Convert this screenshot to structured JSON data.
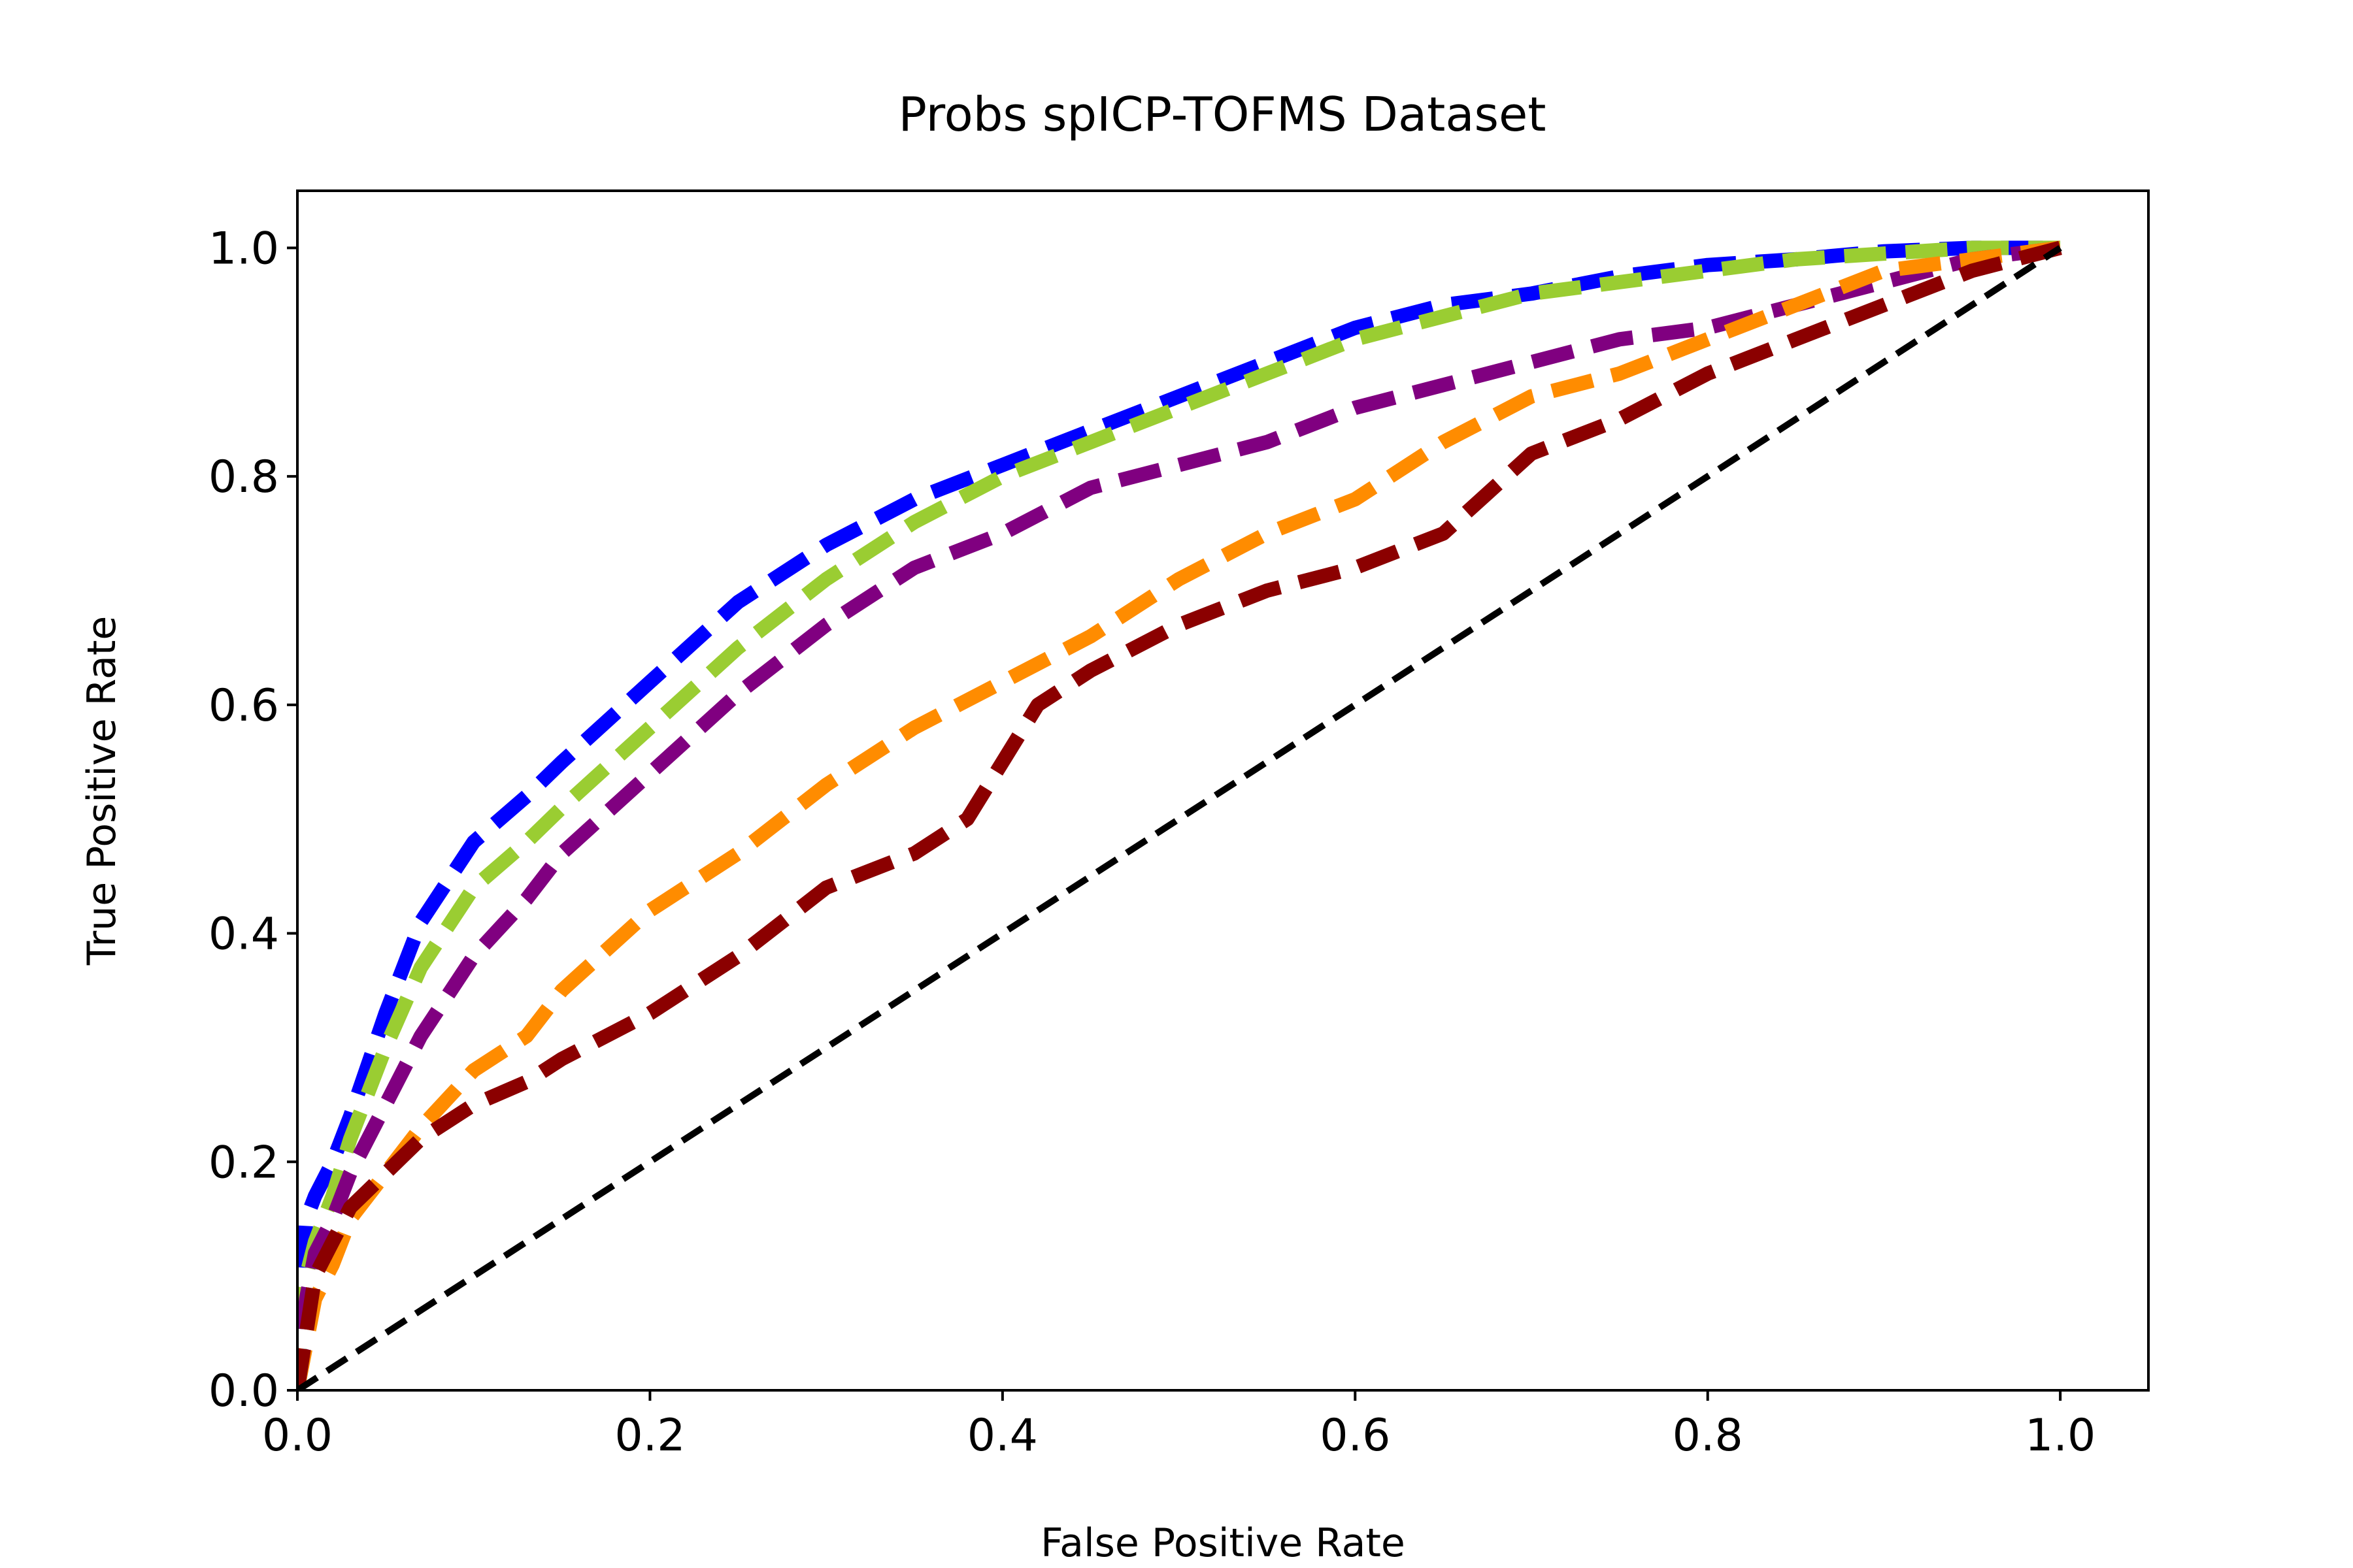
{
  "chart_data": {
    "type": "line",
    "title": "Probs spICP-TOFMS Dataset",
    "xlabel": "False Positive Rate",
    "ylabel": "True Positive Rate",
    "xlim": [
      0.0,
      1.05
    ],
    "ylim": [
      0.0,
      1.05
    ],
    "xticks": [
      "0.0",
      "0.2",
      "0.4",
      "0.6",
      "0.8",
      "1.0"
    ],
    "yticks": [
      "0.0",
      "0.2",
      "0.4",
      "0.6",
      "0.8",
      "1.0"
    ],
    "grid": false,
    "legend": "none",
    "series": [
      {
        "color": "#0000ff",
        "line_style": "dashed",
        "x": [
          0.0,
          0.002,
          0.005,
          0.01,
          0.02,
          0.03,
          0.05,
          0.07,
          0.1,
          0.13,
          0.15,
          0.2,
          0.25,
          0.3,
          0.35,
          0.4,
          0.45,
          0.5,
          0.55,
          0.6,
          0.65,
          0.7,
          0.75,
          0.8,
          0.85,
          0.9,
          0.95,
          1.0
        ],
        "y": [
          0.0,
          0.07,
          0.15,
          0.17,
          0.2,
          0.24,
          0.33,
          0.41,
          0.48,
          0.52,
          0.55,
          0.62,
          0.69,
          0.74,
          0.78,
          0.81,
          0.84,
          0.87,
          0.9,
          0.93,
          0.95,
          0.96,
          0.975,
          0.985,
          0.99,
          0.997,
          1.0,
          1.0
        ]
      },
      {
        "color": "#9acd32",
        "line_style": "dashed",
        "x": [
          0.0,
          0.002,
          0.005,
          0.01,
          0.02,
          0.03,
          0.05,
          0.07,
          0.1,
          0.13,
          0.15,
          0.2,
          0.25,
          0.3,
          0.35,
          0.4,
          0.45,
          0.5,
          0.55,
          0.6,
          0.65,
          0.7,
          0.75,
          0.8,
          0.85,
          0.9,
          0.95,
          1.0
        ],
        "y": [
          0.0,
          0.05,
          0.1,
          0.13,
          0.17,
          0.22,
          0.3,
          0.37,
          0.44,
          0.48,
          0.51,
          0.58,
          0.65,
          0.71,
          0.76,
          0.8,
          0.83,
          0.86,
          0.89,
          0.92,
          0.94,
          0.96,
          0.97,
          0.98,
          0.99,
          0.995,
          1.0,
          1.0
        ]
      },
      {
        "color": "#800080",
        "line_style": "dashed",
        "x": [
          0.0,
          0.005,
          0.01,
          0.02,
          0.03,
          0.05,
          0.07,
          0.1,
          0.13,
          0.15,
          0.2,
          0.25,
          0.3,
          0.35,
          0.4,
          0.45,
          0.5,
          0.55,
          0.6,
          0.65,
          0.7,
          0.75,
          0.8,
          0.85,
          0.9,
          0.95,
          1.0
        ],
        "y": [
          0.0,
          0.08,
          0.12,
          0.15,
          0.19,
          0.25,
          0.31,
          0.38,
          0.43,
          0.47,
          0.54,
          0.61,
          0.67,
          0.72,
          0.75,
          0.79,
          0.81,
          0.83,
          0.86,
          0.88,
          0.9,
          0.92,
          0.93,
          0.95,
          0.97,
          0.99,
          1.0
        ]
      },
      {
        "color": "#ff8c00",
        "line_style": "dashed",
        "x": [
          0.0,
          0.005,
          0.01,
          0.02,
          0.03,
          0.05,
          0.07,
          0.1,
          0.13,
          0.15,
          0.2,
          0.25,
          0.3,
          0.35,
          0.4,
          0.45,
          0.5,
          0.55,
          0.6,
          0.65,
          0.7,
          0.75,
          0.8,
          0.85,
          0.9,
          0.95,
          1.0
        ],
        "y": [
          0.0,
          0.04,
          0.08,
          0.11,
          0.15,
          0.19,
          0.23,
          0.28,
          0.31,
          0.35,
          0.42,
          0.47,
          0.53,
          0.58,
          0.62,
          0.66,
          0.71,
          0.75,
          0.78,
          0.83,
          0.87,
          0.89,
          0.92,
          0.95,
          0.98,
          0.99,
          1.0
        ]
      },
      {
        "color": "#8b0000",
        "line_style": "dashed",
        "x": [
          0.0,
          0.005,
          0.01,
          0.02,
          0.03,
          0.05,
          0.07,
          0.1,
          0.13,
          0.15,
          0.2,
          0.25,
          0.3,
          0.35,
          0.38,
          0.4,
          0.42,
          0.45,
          0.5,
          0.55,
          0.6,
          0.65,
          0.7,
          0.75,
          0.8,
          0.85,
          0.9,
          0.95,
          1.0
        ],
        "y": [
          0.0,
          0.05,
          0.1,
          0.13,
          0.16,
          0.19,
          0.22,
          0.25,
          0.27,
          0.29,
          0.33,
          0.38,
          0.44,
          0.47,
          0.5,
          0.55,
          0.6,
          0.63,
          0.67,
          0.7,
          0.72,
          0.75,
          0.82,
          0.85,
          0.89,
          0.92,
          0.95,
          0.98,
          1.0
        ]
      },
      {
        "color": "#000000",
        "line_style": "dashed",
        "x": [
          0.0,
          1.0
        ],
        "y": [
          0.0,
          1.0
        ]
      }
    ]
  }
}
